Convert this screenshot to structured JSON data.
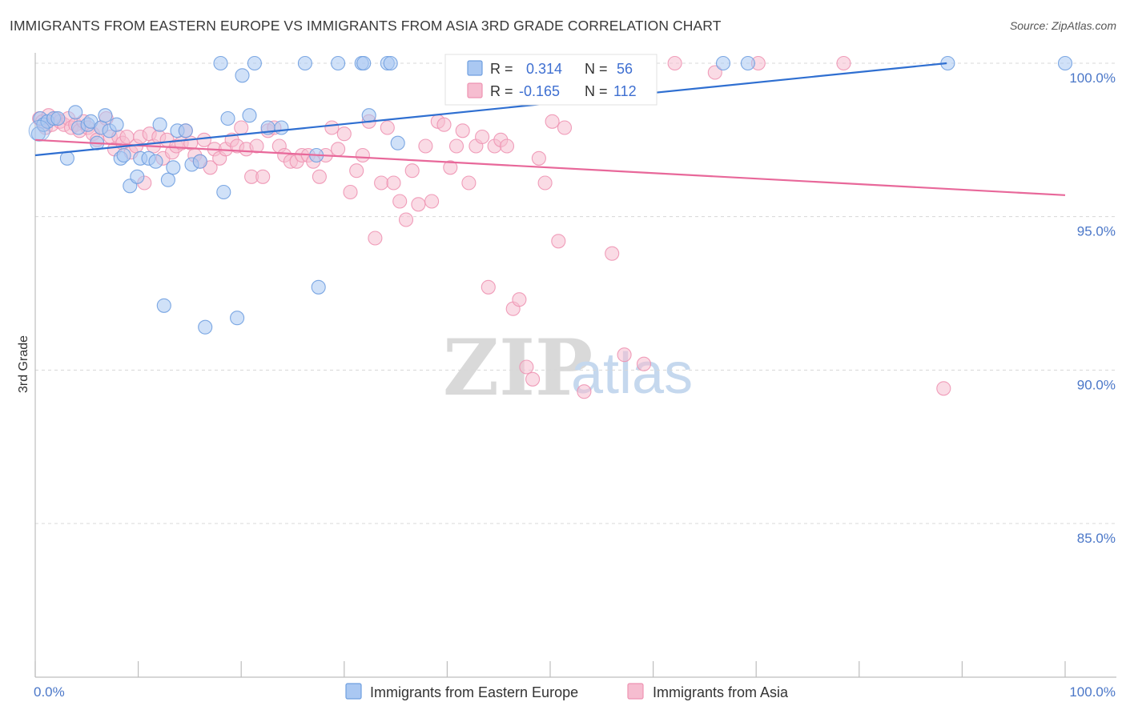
{
  "title": "IMMIGRANTS FROM EASTERN EUROPE VS IMMIGRANTS FROM ASIA 3RD GRADE CORRELATION CHART",
  "source": "Source: ZipAtlas.com",
  "watermark": {
    "zip": "ZIP",
    "atlas": "atlas"
  },
  "colors": {
    "blue": "#6f9fe0",
    "blue_fill": "#aac8f2",
    "blue_line": "#2f6fd1",
    "pink": "#ee93b2",
    "pink_fill": "#f6bdd0",
    "pink_line": "#e8689a",
    "tick_text": "#4b77c8",
    "grid": "#d8d8d8"
  },
  "legend_box": {
    "rows": [
      {
        "r_label": "R =",
        "r_value": "0.314",
        "n_label": "N =",
        "n_value": "56",
        "color": "blue"
      },
      {
        "r_label": "R =",
        "r_value": "-0.165",
        "n_label": "N =",
        "n_value": "112",
        "color": "pink"
      }
    ]
  },
  "chart_data": {
    "type": "scatter",
    "title": "IMMIGRANTS FROM EASTERN EUROPE VS IMMIGRANTS FROM ASIA 3RD GRADE CORRELATION CHART",
    "xlabel": "",
    "ylabel": "3rd Grade",
    "xlim": [
      0,
      100
    ],
    "ylim": [
      80.5,
      100.8
    ],
    "x_tick_labels": [
      "0.0%",
      "100.0%"
    ],
    "y_ticks": [
      100,
      95,
      90,
      85
    ],
    "y_tick_labels": [
      "100.0%",
      "95.0%",
      "90.0%",
      "85.0%"
    ],
    "grid": "horizontal dashed",
    "legend_position": "bottom-center",
    "series": [
      {
        "name": "Immigrants from Eastern Europe",
        "color": "blue",
        "R": 0.314,
        "N": 56,
        "trend": {
          "x": [
            0,
            88.5
          ],
          "y": [
            97.0,
            100.0
          ]
        },
        "points": [
          [
            0.3,
            97.7
          ],
          [
            0.5,
            98.2
          ],
          [
            0.8,
            98.0
          ],
          [
            1.2,
            98.1
          ],
          [
            1.8,
            98.2
          ],
          [
            2.2,
            98.2
          ],
          [
            3.1,
            96.9
          ],
          [
            3.9,
            98.4
          ],
          [
            4.2,
            97.9
          ],
          [
            5.1,
            98.0
          ],
          [
            5.4,
            98.1
          ],
          [
            6.0,
            97.4
          ],
          [
            6.4,
            97.9
          ],
          [
            6.8,
            98.3
          ],
          [
            7.2,
            97.8
          ],
          [
            7.9,
            98.0
          ],
          [
            8.3,
            96.9
          ],
          [
            8.6,
            97.0
          ],
          [
            9.2,
            96.0
          ],
          [
            9.9,
            96.3
          ],
          [
            10.2,
            96.9
          ],
          [
            11.0,
            96.9
          ],
          [
            11.7,
            96.8
          ],
          [
            12.1,
            98.0
          ],
          [
            12.5,
            92.1
          ],
          [
            12.9,
            96.2
          ],
          [
            13.4,
            96.6
          ],
          [
            13.8,
            97.8
          ],
          [
            14.6,
            97.8
          ],
          [
            15.2,
            96.7
          ],
          [
            16.0,
            96.8
          ],
          [
            16.5,
            91.4
          ],
          [
            18.0,
            100.0
          ],
          [
            18.3,
            95.8
          ],
          [
            18.7,
            98.2
          ],
          [
            19.6,
            91.7
          ],
          [
            20.1,
            99.6
          ],
          [
            20.8,
            98.3
          ],
          [
            21.3,
            100.0
          ],
          [
            22.6,
            97.9
          ],
          [
            23.9,
            97.9
          ],
          [
            26.2,
            100.0
          ],
          [
            27.3,
            97.0
          ],
          [
            27.5,
            92.7
          ],
          [
            29.4,
            100.0
          ],
          [
            31.7,
            100.0
          ],
          [
            31.9,
            100.0
          ],
          [
            32.4,
            98.3
          ],
          [
            34.2,
            100.0
          ],
          [
            34.5,
            100.0
          ],
          [
            35.2,
            97.4
          ],
          [
            56.0,
            100.0
          ],
          [
            66.8,
            100.0
          ],
          [
            69.2,
            100.0
          ],
          [
            88.6,
            100.0
          ],
          [
            100.0,
            100.0
          ]
        ]
      },
      {
        "name": "Immigrants from Asia",
        "color": "pink",
        "R": -0.165,
        "N": 112,
        "trend": {
          "x": [
            0,
            100
          ],
          "y": [
            97.5,
            95.7
          ]
        },
        "points": [
          [
            0.4,
            98.2
          ],
          [
            0.7,
            98.1
          ],
          [
            1.0,
            97.9
          ],
          [
            1.3,
            98.3
          ],
          [
            1.6,
            98.0
          ],
          [
            2.0,
            98.2
          ],
          [
            2.4,
            98.1
          ],
          [
            2.8,
            98.0
          ],
          [
            3.2,
            98.2
          ],
          [
            3.5,
            97.9
          ],
          [
            3.9,
            98.0
          ],
          [
            4.3,
            97.8
          ],
          [
            4.7,
            98.1
          ],
          [
            5.1,
            97.9
          ],
          [
            5.6,
            97.7
          ],
          [
            6.0,
            97.5
          ],
          [
            6.4,
            97.9
          ],
          [
            6.9,
            98.2
          ],
          [
            7.3,
            97.6
          ],
          [
            7.7,
            97.2
          ],
          [
            8.1,
            97.6
          ],
          [
            8.5,
            97.4
          ],
          [
            8.9,
            97.6
          ],
          [
            9.3,
            97.1
          ],
          [
            9.8,
            97.3
          ],
          [
            10.2,
            97.6
          ],
          [
            10.6,
            96.1
          ],
          [
            11.1,
            97.7
          ],
          [
            11.5,
            97.3
          ],
          [
            12.0,
            97.6
          ],
          [
            12.4,
            96.9
          ],
          [
            12.8,
            97.5
          ],
          [
            13.3,
            97.1
          ],
          [
            13.7,
            97.3
          ],
          [
            14.2,
            97.4
          ],
          [
            14.6,
            97.8
          ],
          [
            15.1,
            97.4
          ],
          [
            15.5,
            97.0
          ],
          [
            16.0,
            96.8
          ],
          [
            16.4,
            97.5
          ],
          [
            17.0,
            96.6
          ],
          [
            17.4,
            97.2
          ],
          [
            17.9,
            96.9
          ],
          [
            18.5,
            97.2
          ],
          [
            19.1,
            97.5
          ],
          [
            19.6,
            97.3
          ],
          [
            20.0,
            97.9
          ],
          [
            20.5,
            97.2
          ],
          [
            21.0,
            96.3
          ],
          [
            21.5,
            97.3
          ],
          [
            22.1,
            96.3
          ],
          [
            22.6,
            97.8
          ],
          [
            23.2,
            97.9
          ],
          [
            23.7,
            97.3
          ],
          [
            24.2,
            97.0
          ],
          [
            24.8,
            96.8
          ],
          [
            25.4,
            96.8
          ],
          [
            25.9,
            97.0
          ],
          [
            26.5,
            97.0
          ],
          [
            27.0,
            96.8
          ],
          [
            27.6,
            96.3
          ],
          [
            28.2,
            97.0
          ],
          [
            28.8,
            97.9
          ],
          [
            29.4,
            97.2
          ],
          [
            30.0,
            97.7
          ],
          [
            30.6,
            95.8
          ],
          [
            31.2,
            96.5
          ],
          [
            31.8,
            97.0
          ],
          [
            32.4,
            98.1
          ],
          [
            33.0,
            94.3
          ],
          [
            33.6,
            96.1
          ],
          [
            34.2,
            97.9
          ],
          [
            34.8,
            96.1
          ],
          [
            35.4,
            95.5
          ],
          [
            36.0,
            94.9
          ],
          [
            36.6,
            96.5
          ],
          [
            37.2,
            95.4
          ],
          [
            37.9,
            97.3
          ],
          [
            38.5,
            95.5
          ],
          [
            39.1,
            98.1
          ],
          [
            39.7,
            98.0
          ],
          [
            40.3,
            96.6
          ],
          [
            40.9,
            97.3
          ],
          [
            41.5,
            97.8
          ],
          [
            42.1,
            96.1
          ],
          [
            42.8,
            97.3
          ],
          [
            43.4,
            97.6
          ],
          [
            44.0,
            92.7
          ],
          [
            44.6,
            97.3
          ],
          [
            45.2,
            97.5
          ],
          [
            45.8,
            97.3
          ],
          [
            46.4,
            92.0
          ],
          [
            47.0,
            92.3
          ],
          [
            47.7,
            90.1
          ],
          [
            48.3,
            89.7
          ],
          [
            48.9,
            96.9
          ],
          [
            49.5,
            96.1
          ],
          [
            50.2,
            98.1
          ],
          [
            50.8,
            94.2
          ],
          [
            51.4,
            97.9
          ],
          [
            52.1,
            100.0
          ],
          [
            52.7,
            99.5
          ],
          [
            53.3,
            89.3
          ],
          [
            54.0,
            100.0
          ],
          [
            56.0,
            93.8
          ],
          [
            57.2,
            90.5
          ],
          [
            59.1,
            90.2
          ],
          [
            62.1,
            100.0
          ],
          [
            66.0,
            99.7
          ],
          [
            70.2,
            100.0
          ],
          [
            78.5,
            100.0
          ],
          [
            88.2,
            89.4
          ]
        ]
      }
    ]
  }
}
